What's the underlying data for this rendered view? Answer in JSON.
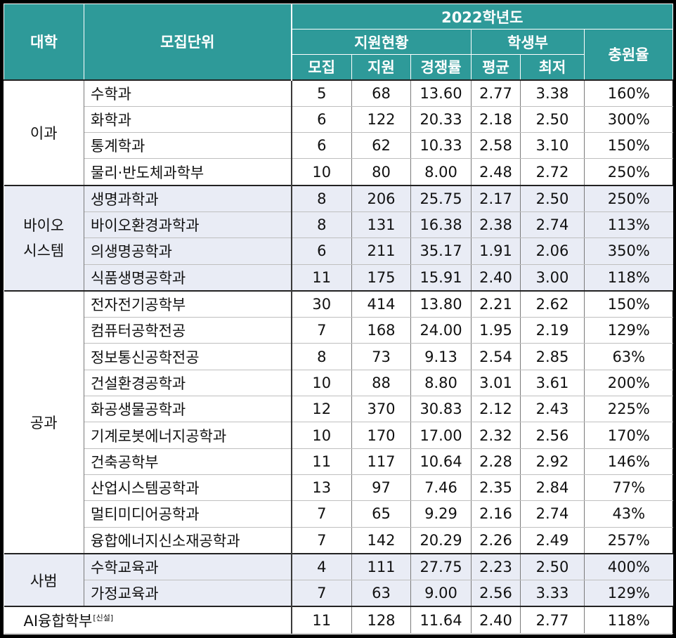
{
  "header": {
    "college": "대학",
    "unit": "모집단위",
    "year": "2022학년도",
    "applicants_group": "지원현황",
    "record_group": "학생부",
    "fill_rate": "충원율",
    "recruit": "모집",
    "apply": "지원",
    "ratio": "경쟁률",
    "avg": "평균",
    "min": "최저"
  },
  "groups": [
    {
      "college": "이과",
      "rows": [
        {
          "unit": "수학과",
          "recruit": "5",
          "apply": "68",
          "ratio": "13.60",
          "avg": "2.77",
          "min": "3.38",
          "fill": "160%"
        },
        {
          "unit": "화학과",
          "recruit": "6",
          "apply": "122",
          "ratio": "20.33",
          "avg": "2.18",
          "min": "2.50",
          "fill": "300%"
        },
        {
          "unit": "통계학과",
          "recruit": "6",
          "apply": "62",
          "ratio": "10.33",
          "avg": "2.58",
          "min": "3.10",
          "fill": "150%"
        },
        {
          "unit": "물리·반도체과학부",
          "recruit": "10",
          "apply": "80",
          "ratio": "8.00",
          "avg": "2.48",
          "min": "2.72",
          "fill": "250%"
        }
      ]
    },
    {
      "college": "바이오\n시스템",
      "college_line1": "바이오",
      "college_line2": "시스템",
      "rows": [
        {
          "unit": "생명과학과",
          "recruit": "8",
          "apply": "206",
          "ratio": "25.75",
          "avg": "2.17",
          "min": "2.50",
          "fill": "250%"
        },
        {
          "unit": "바이오환경과학과",
          "recruit": "8",
          "apply": "131",
          "ratio": "16.38",
          "avg": "2.38",
          "min": "2.74",
          "fill": "113%"
        },
        {
          "unit": "의생명공학과",
          "recruit": "6",
          "apply": "211",
          "ratio": "35.17",
          "avg": "1.91",
          "min": "2.06",
          "fill": "350%"
        },
        {
          "unit": "식품생명공학과",
          "recruit": "11",
          "apply": "175",
          "ratio": "15.91",
          "avg": "2.40",
          "min": "3.00",
          "fill": "118%"
        }
      ]
    },
    {
      "college": "공과",
      "rows": [
        {
          "unit": "전자전기공학부",
          "recruit": "30",
          "apply": "414",
          "ratio": "13.80",
          "avg": "2.21",
          "min": "2.62",
          "fill": "150%"
        },
        {
          "unit": "컴퓨터공학전공",
          "recruit": "7",
          "apply": "168",
          "ratio": "24.00",
          "avg": "1.95",
          "min": "2.19",
          "fill": "129%"
        },
        {
          "unit": "정보통신공학전공",
          "recruit": "8",
          "apply": "73",
          "ratio": "9.13",
          "avg": "2.54",
          "min": "2.85",
          "fill": "63%"
        },
        {
          "unit": "건설환경공학과",
          "recruit": "10",
          "apply": "88",
          "ratio": "8.80",
          "avg": "3.01",
          "min": "3.61",
          "fill": "200%"
        },
        {
          "unit": "화공생물공학과",
          "recruit": "12",
          "apply": "370",
          "ratio": "30.83",
          "avg": "2.12",
          "min": "2.43",
          "fill": "225%"
        },
        {
          "unit": "기계로봇에너지공학과",
          "recruit": "10",
          "apply": "170",
          "ratio": "17.00",
          "avg": "2.32",
          "min": "2.56",
          "fill": "170%"
        },
        {
          "unit": "건축공학부",
          "recruit": "11",
          "apply": "117",
          "ratio": "10.64",
          "avg": "2.28",
          "min": "2.92",
          "fill": "146%"
        },
        {
          "unit": "산업시스템공학과",
          "recruit": "13",
          "apply": "97",
          "ratio": "7.46",
          "avg": "2.35",
          "min": "2.84",
          "fill": "77%"
        },
        {
          "unit": "멀티미디어공학과",
          "recruit": "7",
          "apply": "65",
          "ratio": "9.29",
          "avg": "2.16",
          "min": "2.74",
          "fill": "43%"
        },
        {
          "unit": "융합에너지신소재공학과",
          "recruit": "7",
          "apply": "142",
          "ratio": "20.29",
          "avg": "2.26",
          "min": "2.49",
          "fill": "257%"
        }
      ]
    },
    {
      "college": "사범",
      "rows": [
        {
          "unit": "수학교육과",
          "recruit": "4",
          "apply": "111",
          "ratio": "27.75",
          "avg": "2.23",
          "min": "2.50",
          "fill": "400%"
        },
        {
          "unit": "가정교육과",
          "recruit": "7",
          "apply": "63",
          "ratio": "9.00",
          "avg": "2.56",
          "min": "3.33",
          "fill": "129%"
        }
      ]
    }
  ],
  "ai_row": {
    "unit": "AI융합학부",
    "tag": "[신설]",
    "recruit": "11",
    "apply": "128",
    "ratio": "11.64",
    "avg": "2.40",
    "min": "2.77",
    "fill": "118%"
  }
}
